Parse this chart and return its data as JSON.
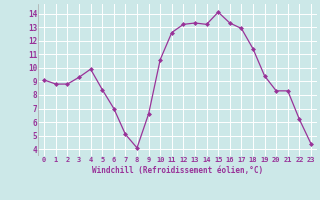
{
  "x": [
    0,
    1,
    2,
    3,
    4,
    5,
    6,
    7,
    8,
    9,
    10,
    11,
    12,
    13,
    14,
    15,
    16,
    17,
    18,
    19,
    20,
    21,
    22,
    23
  ],
  "y": [
    9.1,
    8.8,
    8.8,
    9.3,
    9.9,
    8.4,
    7.0,
    5.1,
    4.1,
    6.6,
    10.6,
    12.6,
    13.2,
    13.3,
    13.2,
    14.1,
    13.3,
    12.9,
    11.4,
    9.4,
    8.3,
    8.3,
    6.2,
    4.4
  ],
  "line_color": "#993399",
  "marker": "D",
  "marker_size": 2.0,
  "bg_color": "#cce8e8",
  "grid_color": "#ffffff",
  "xlabel": "Windchill (Refroidissement éolien,°C)",
  "xlabel_color": "#993399",
  "tick_color": "#993399",
  "ylim": [
    3.5,
    14.7
  ],
  "xlim": [
    -0.5,
    23.5
  ],
  "yticks": [
    4,
    5,
    6,
    7,
    8,
    9,
    10,
    11,
    12,
    13,
    14
  ],
  "xticks": [
    0,
    1,
    2,
    3,
    4,
    5,
    6,
    7,
    8,
    9,
    10,
    11,
    12,
    13,
    14,
    15,
    16,
    17,
    18,
    19,
    20,
    21,
    22,
    23
  ],
  "xtick_labels": [
    "0",
    "1",
    "2",
    "3",
    "4",
    "5",
    "6",
    "7",
    "8",
    "9",
    "10",
    "11",
    "12",
    "13",
    "14",
    "15",
    "16",
    "17",
    "18",
    "19",
    "20",
    "21",
    "22",
    "23"
  ]
}
